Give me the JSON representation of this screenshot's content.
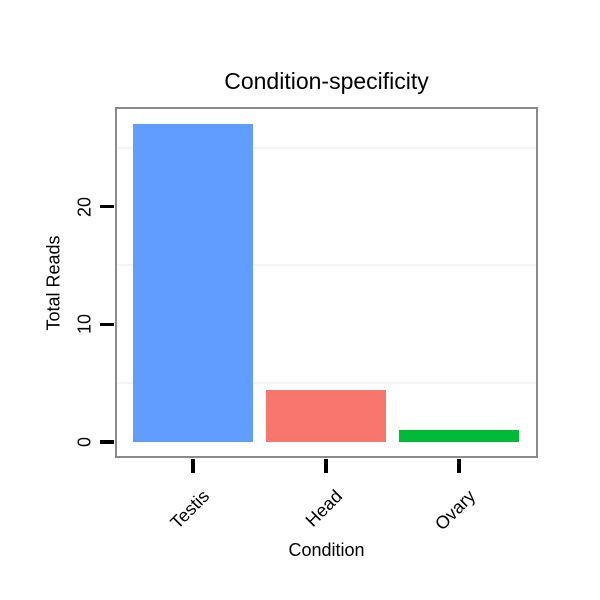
{
  "chart_data": {
    "type": "bar",
    "title": "Condition-specificity",
    "xlabel": "Condition",
    "ylabel": "Total Reads",
    "categories": [
      "Testis",
      "Head",
      "Ovary"
    ],
    "values": [
      27,
      4.4,
      1
    ],
    "bar_colors": [
      "#619CFF",
      "#F8766D",
      "#00BA38"
    ],
    "y_ticks": [
      0,
      10,
      20
    ],
    "minor_gridlines": [
      5,
      15,
      25
    ],
    "ylim": [
      -1.4,
      28.3
    ],
    "grid": "minor-horizontal-only",
    "legend": "none"
  },
  "colors": {
    "panel_border": "#8a8a8a",
    "minor_grid": "#f4f4f4",
    "tick": "#000000",
    "text": "#000000",
    "background": "#ffffff"
  }
}
